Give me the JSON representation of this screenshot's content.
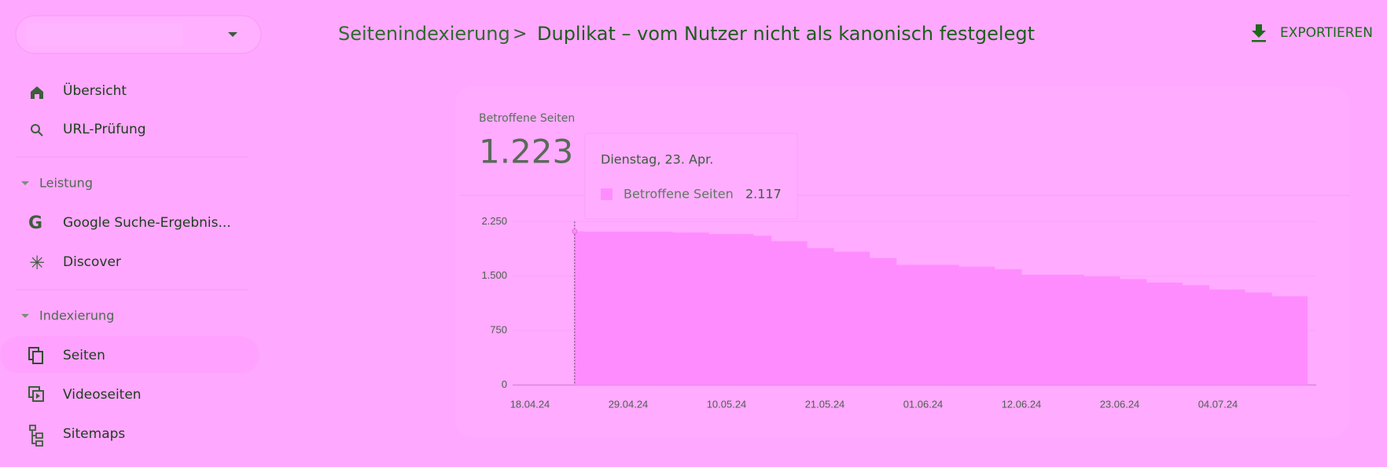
{
  "search": {
    "placeholder": ""
  },
  "breadcrumb": {
    "parent": "Seitenindexierung",
    "separator": ">",
    "current": "Duplikat – vom Nutzer nicht als kanonisch festgelegt"
  },
  "export": {
    "label": "EXPORTIEREN"
  },
  "nav": {
    "items": [
      "Übersicht",
      "URL-Prüfung"
    ],
    "sections": [
      {
        "title": "Leistung",
        "items": [
          "Google Suche-Ergebnis...",
          "Discover"
        ]
      },
      {
        "title": "Indexierung",
        "items": [
          "Seiten",
          "Videoseiten",
          "Sitemaps"
        ]
      }
    ]
  },
  "summary": {
    "value": "1.223"
  },
  "tooltip": {
    "date": "Dienstag, 23. Apr.",
    "value": "2.117"
  },
  "chart_data": {
    "type": "bar",
    "categories": [
      "18.04.24",
      null,
      null,
      null,
      null,
      null,
      null,
      null,
      null,
      null,
      null,
      "29.04.24",
      null,
      null,
      null,
      null,
      null,
      null,
      null,
      null,
      null,
      null,
      "10.05.24",
      null,
      null,
      null,
      null,
      null,
      null,
      null,
      null,
      null,
      null,
      "21.05.24",
      null,
      null,
      null,
      null,
      null,
      null,
      null,
      null,
      null,
      null,
      "01.06.24",
      null,
      null,
      null,
      null,
      null,
      null,
      null,
      null,
      null,
      null,
      "12.06.24",
      null,
      null,
      null,
      null,
      null,
      null,
      null,
      null,
      null,
      null,
      "23.06.24",
      null,
      null,
      null,
      null,
      null,
      null,
      null,
      null,
      null,
      null,
      "04.07.24",
      null,
      null,
      null,
      null,
      null,
      null,
      null,
      null,
      null,
      null
    ],
    "series": [
      {
        "name": "Betroffene Seiten",
        "color": "#ff8cff",
        "values": [
          null,
          null,
          null,
          null,
          null,
          2117,
          2110,
          2110,
          2110,
          2110,
          2110,
          2110,
          2110,
          2110,
          2110,
          2110,
          2100,
          2100,
          2100,
          2100,
          2080,
          2080,
          2080,
          2080,
          2080,
          2055,
          2055,
          1980,
          1980,
          1980,
          1980,
          1885,
          1885,
          1885,
          1835,
          1835,
          1835,
          1835,
          1750,
          1750,
          1750,
          1655,
          1655,
          1655,
          1655,
          1655,
          1655,
          1655,
          1630,
          1630,
          1630,
          1630,
          1595,
          1595,
          1595,
          1520,
          1520,
          1520,
          1520,
          1520,
          1520,
          1520,
          1495,
          1495,
          1495,
          1495,
          1460,
          1460,
          1460,
          1410,
          1410,
          1410,
          1410,
          1375,
          1375,
          1375,
          1315,
          1315,
          1315,
          1315,
          1275,
          1275,
          1275,
          1223,
          1223,
          1223,
          1223,
          null
        ]
      }
    ],
    "ylim": [
      0,
      2250
    ],
    "yticks": [
      0,
      750,
      {
        "value": 1500,
        "label": "1.500"
      },
      {
        "value": 2250,
        "label": "2.250"
      }
    ],
    "grid": true
  }
}
